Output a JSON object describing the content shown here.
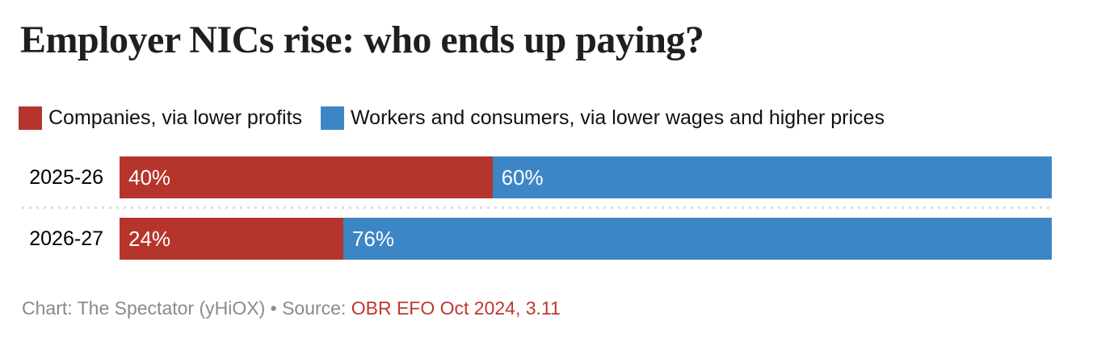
{
  "title": "Employer NICs rise: who ends up paying?",
  "legend": [
    {
      "label": "Companies, via lower profits",
      "color": "#b5352c"
    },
    {
      "label": "Workers and consumers, via lower wages and higher prices",
      "color": "#3d86c6"
    }
  ],
  "chart_data": {
    "type": "bar",
    "subtype": "horizontal-stacked-percentage",
    "title": "Employer NICs rise: who ends up paying?",
    "categories": [
      "2025-26",
      "2026-27"
    ],
    "series": [
      {
        "name": "Companies, via lower profits",
        "color": "#b5352c",
        "values": [
          40,
          24
        ]
      },
      {
        "name": "Workers and consumers, via lower wages and higher prices",
        "color": "#3d86c6",
        "values": [
          60,
          76
        ]
      }
    ],
    "value_labels": [
      [
        "40%",
        "60%"
      ],
      [
        "24%",
        "76%"
      ]
    ],
    "value_label_color": "#ffffff",
    "xlim": [
      0,
      100
    ],
    "xlabel": "",
    "ylabel": "",
    "grid": false,
    "legend_position": "top",
    "row_separator": "dotted"
  },
  "footer": {
    "credit": "Chart: The Spectator (yHiOX) • Source: ",
    "source_link": "OBR EFO Oct 2024, 3.11",
    "credit_color": "#8a8a8a",
    "link_color": "#c0362f"
  }
}
